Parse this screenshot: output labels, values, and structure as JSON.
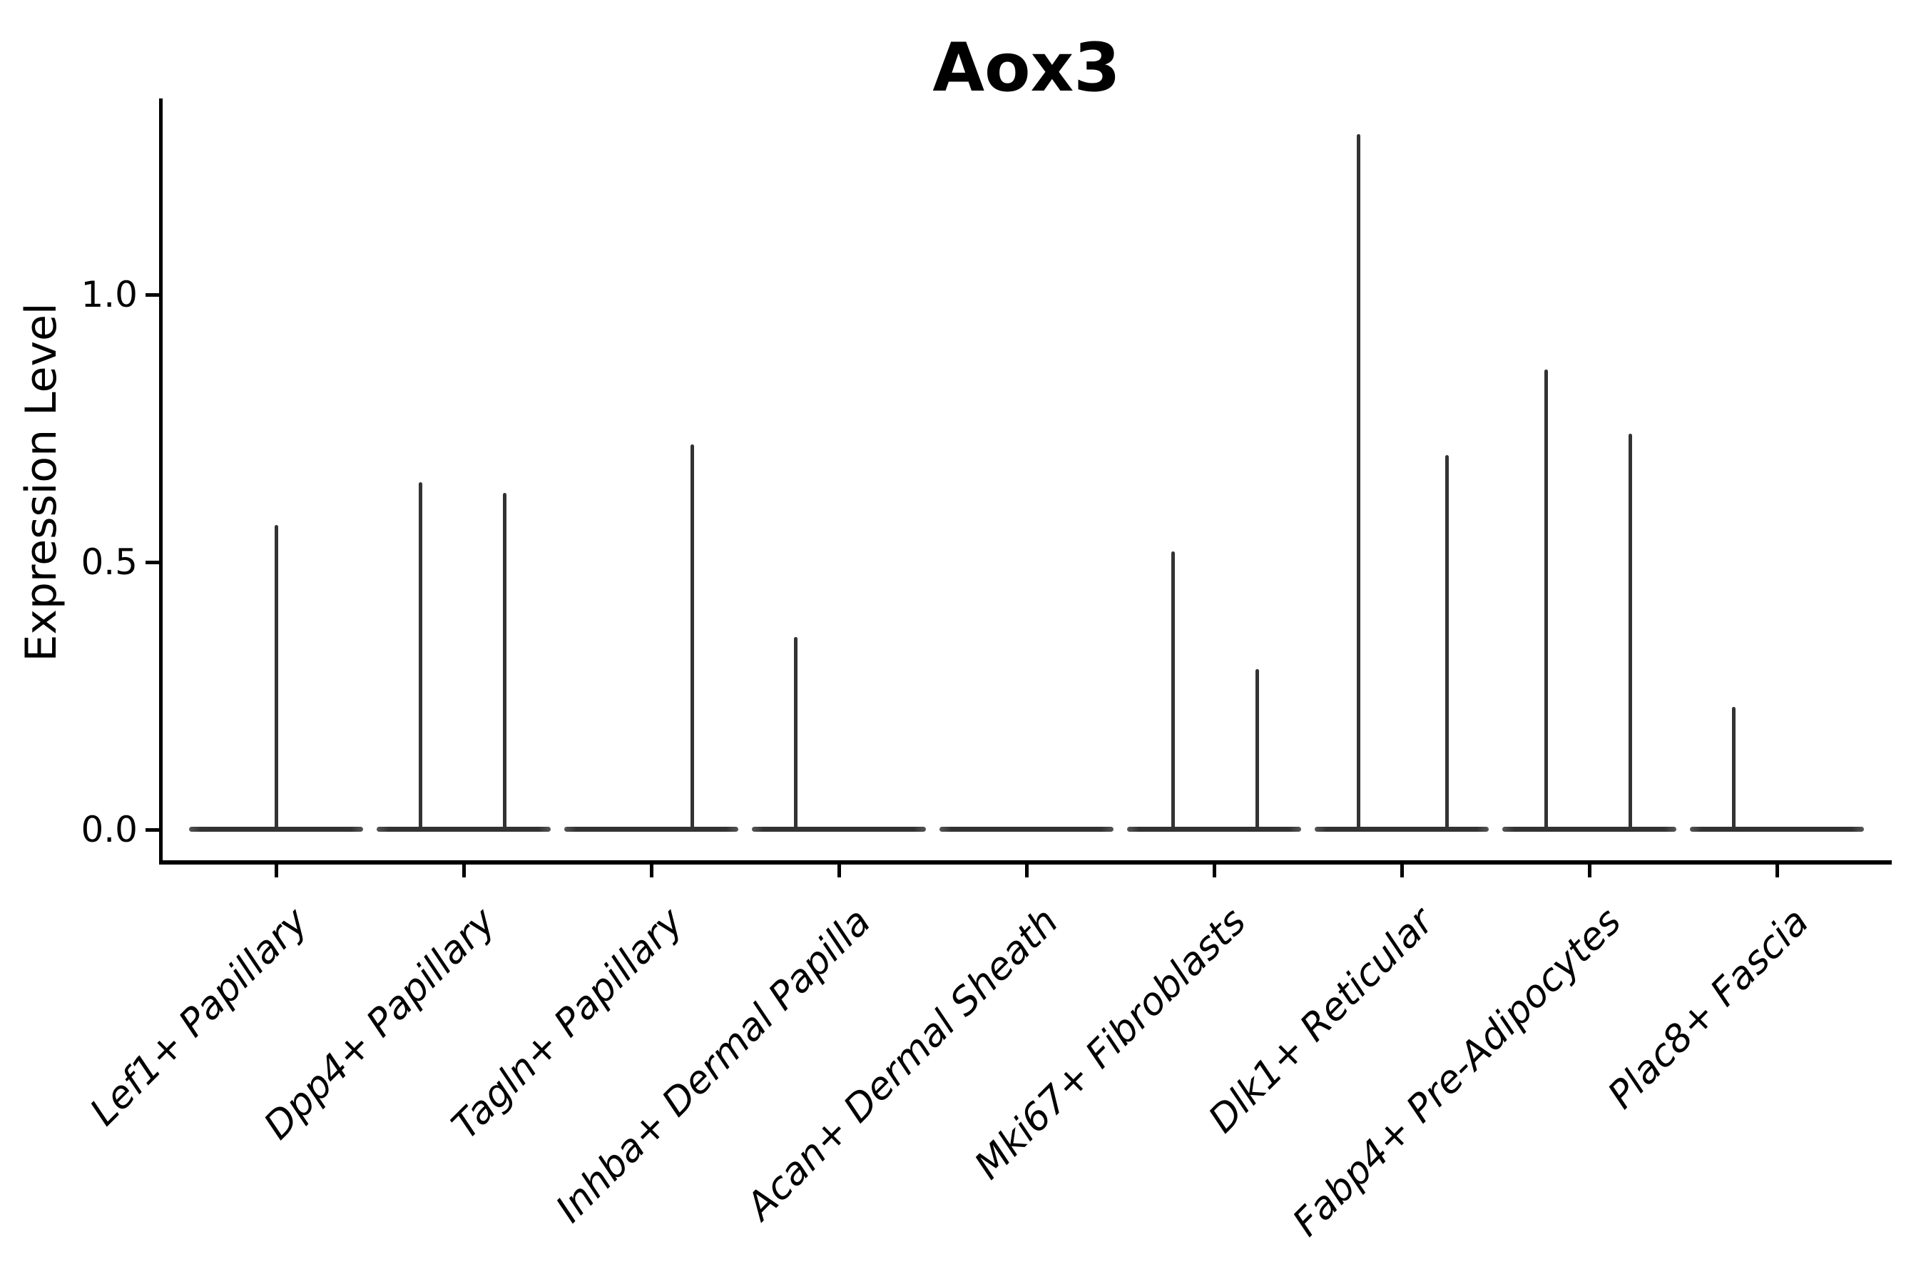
{
  "figure": {
    "title": "Aox3",
    "background": "#ffffff"
  },
  "y_axis": {
    "label": "Expression Level",
    "ticks": [
      {
        "label": "0.0",
        "value": 0.0
      },
      {
        "label": "0.5",
        "value": 0.5
      },
      {
        "label": "1.0",
        "value": 1.0
      }
    ]
  },
  "x_axis": {
    "categories": [
      "Lef1+ Papillary",
      "Dpp4+ Papillary",
      "Tagln+ Papillary",
      "Inhba+ Dermal Papilla",
      "Acan+ Dermal Sheath",
      "Mki67+ Fibroblasts",
      "Dlk1+ Reticular",
      "Fabp4+ Pre-Adipocytes",
      "Plac8+ Fascia"
    ]
  },
  "chart_data": {
    "type": "violin",
    "title": "Aox3",
    "xlabel": "",
    "ylabel": "Expression Level",
    "ylim": [
      -0.06,
      1.37
    ],
    "yticks": [
      0.0,
      0.5,
      1.0
    ],
    "grid": false,
    "legend": "none",
    "categories": [
      "Lef1+ Papillary",
      "Dpp4+ Papillary",
      "Tagln+ Papillary",
      "Inhba+ Dermal Papilla",
      "Acan+ Dermal Sheath",
      "Mki67+ Fibroblasts",
      "Dlk1+ Reticular",
      "Fabp4+ Pre-Adipocytes",
      "Plac8+ Fascia"
    ],
    "series": [
      {
        "category": "Lef1+ Papillary",
        "baseline_value": 0.0,
        "spikes": [
          {
            "offset_frac": 0.0,
            "peak": 0.57
          }
        ]
      },
      {
        "category": "Dpp4+ Papillary",
        "baseline_value": 0.0,
        "spikes": [
          {
            "offset_frac": -0.23,
            "peak": 0.65
          },
          {
            "offset_frac": 0.22,
            "peak": 0.63
          }
        ]
      },
      {
        "category": "Tagln+ Papillary",
        "baseline_value": 0.0,
        "spikes": [
          {
            "offset_frac": 0.22,
            "peak": 0.72
          }
        ]
      },
      {
        "category": "Inhba+ Dermal Papilla",
        "baseline_value": 0.0,
        "spikes": [
          {
            "offset_frac": -0.23,
            "peak": 0.36
          }
        ]
      },
      {
        "category": "Acan+ Dermal Sheath",
        "baseline_value": 0.0,
        "spikes": []
      },
      {
        "category": "Mki67+ Fibroblasts",
        "baseline_value": 0.0,
        "spikes": [
          {
            "offset_frac": -0.22,
            "peak": 0.52
          },
          {
            "offset_frac": 0.23,
            "peak": 0.3
          }
        ]
      },
      {
        "category": "Dlk1+ Reticular",
        "baseline_value": 0.0,
        "spikes": [
          {
            "offset_frac": -0.23,
            "peak": 1.3
          },
          {
            "offset_frac": 0.24,
            "peak": 0.7
          }
        ]
      },
      {
        "category": "Fabp4+ Pre-Adipocytes",
        "baseline_value": 0.0,
        "spikes": [
          {
            "offset_frac": -0.23,
            "peak": 0.86
          },
          {
            "offset_frac": 0.22,
            "peak": 0.74
          }
        ]
      },
      {
        "category": "Plac8+ Fascia",
        "baseline_value": 0.0,
        "spikes": [
          {
            "offset_frac": -0.23,
            "peak": 0.23
          }
        ]
      }
    ]
  },
  "colors": {
    "violin_stroke": "#333333",
    "axis": "#000000",
    "text": "#000000",
    "background": "#ffffff"
  }
}
